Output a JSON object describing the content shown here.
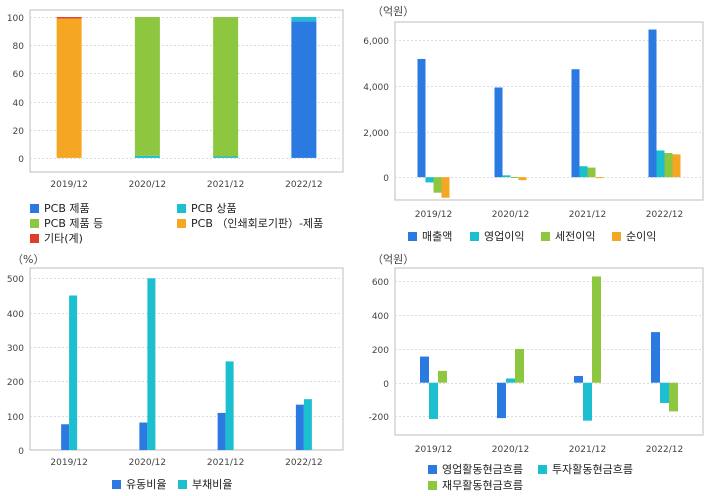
{
  "chart_data": [
    {
      "id": "c1",
      "type": "bar",
      "stacked": true,
      "unit": "",
      "categories": [
        "2019/12",
        "2020/12",
        "2021/12",
        "2022/12"
      ],
      "ylim": [
        -10,
        105
      ],
      "yticks": [
        0,
        20,
        40,
        60,
        80,
        100
      ],
      "grid": true,
      "legend_position": "bottom",
      "series": [
        {
          "name": "PCB 제품",
          "color": "#2a7ae2",
          "values": [
            0,
            0,
            0,
            97
          ]
        },
        {
          "name": "PCB 상품",
          "color": "#1bbfcf",
          "values": [
            0,
            1.5,
            1,
            3
          ]
        },
        {
          "name": "PCB 제품 등",
          "color": "#8dc63f",
          "values": [
            0,
            98.5,
            99,
            0
          ]
        },
        {
          "name": "PCB （인쇄회로기판）-제품",
          "color": "#f5a623",
          "values": [
            99,
            0,
            0,
            0
          ]
        },
        {
          "name": "기타(계)",
          "color": "#e03c2e",
          "values": [
            1,
            0,
            0,
            0
          ]
        }
      ]
    },
    {
      "id": "c2",
      "type": "bar",
      "unit": "（억원）",
      "categories": [
        "2019/12",
        "2020/12",
        "2021/12",
        "2022/12"
      ],
      "ylim": [
        -1000,
        6800
      ],
      "yticks": [
        0,
        2000,
        4000,
        6000
      ],
      "ytick_labels": [
        "0",
        "2,000",
        "4,000",
        "6,000"
      ],
      "grid": true,
      "legend_position": "bottom",
      "series": [
        {
          "name": "매출액",
          "color": "#2a7ae2",
          "values": [
            5180,
            3930,
            4730,
            6470
          ]
        },
        {
          "name": "영업이익",
          "color": "#1bbfcf",
          "values": [
            -230,
            80,
            480,
            1170
          ]
        },
        {
          "name": "세전이익",
          "color": "#8dc63f",
          "values": [
            -680,
            10,
            420,
            1060
          ]
        },
        {
          "name": "순이익",
          "color": "#f5a623",
          "values": [
            -900,
            -130,
            -30,
            1000
          ]
        }
      ]
    },
    {
      "id": "c3",
      "type": "bar",
      "unit": "（%）",
      "categories": [
        "2019/12",
        "2020/12",
        "2021/12",
        "2022/12"
      ],
      "ylim": [
        0,
        530
      ],
      "yticks": [
        0,
        100,
        200,
        300,
        400,
        500
      ],
      "grid": true,
      "legend_position": "bottom",
      "series": [
        {
          "name": "유동비율",
          "color": "#2a7ae2",
          "values": [
            75,
            80,
            108,
            132
          ]
        },
        {
          "name": "부채비율",
          "color": "#1bbfcf",
          "values": [
            450,
            500,
            258,
            148
          ]
        }
      ]
    },
    {
      "id": "c4",
      "type": "bar",
      "unit": "（억원）",
      "categories": [
        "2019/12",
        "2020/12",
        "2021/12",
        "2022/12"
      ],
      "ylim": [
        -310,
        680
      ],
      "yticks": [
        -200,
        0,
        200,
        400,
        600
      ],
      "grid": true,
      "legend_position": "bottom",
      "series": [
        {
          "name": "영업활동현금흐름",
          "color": "#2a7ae2",
          "values": [
            155,
            -210,
            40,
            300
          ]
        },
        {
          "name": "투자활동현금흐름",
          "color": "#1bbfcf",
          "values": [
            -215,
            25,
            -225,
            -120
          ]
        },
        {
          "name": "재무활동현금흐름",
          "color": "#8dc63f",
          "values": [
            70,
            200,
            630,
            -170
          ]
        }
      ]
    }
  ]
}
